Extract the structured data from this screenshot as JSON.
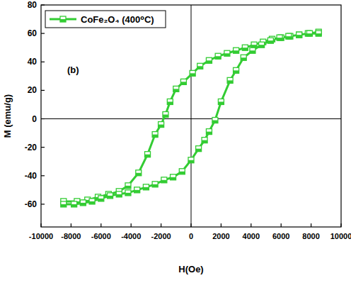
{
  "chart_data": {
    "type": "line",
    "x_label": "H(Oe)",
    "y_label": "M (emu/g)",
    "annotation": "(b)",
    "xlim": [
      -10000,
      10000
    ],
    "ylim": [
      -76,
      80
    ],
    "xticks": [
      -10000,
      -8000,
      -6000,
      -4000,
      -2000,
      0,
      2000,
      4000,
      6000,
      8000,
      10000
    ],
    "yticks": [
      -60,
      -40,
      -20,
      0,
      20,
      40,
      60,
      80
    ],
    "legend": "upper left",
    "series": [
      {
        "name": "CoFe₂O₄ (400⁰C)",
        "color": "#33cc33",
        "marker": "square",
        "x": [
          8500,
          7800,
          7200,
          6600,
          6000,
          5400,
          4800,
          4200,
          3600,
          3000,
          2400,
          1800,
          1200,
          600,
          100,
          -500,
          -1000,
          -1400,
          -1700,
          -2000,
          -2400,
          -2900,
          -3500,
          -4200,
          -4800,
          -5500,
          -6200,
          -6900,
          -7600,
          -8500,
          -8500,
          -7800,
          -7200,
          -6600,
          -6000,
          -5400,
          -4800,
          -4200,
          -3600,
          -3000,
          -2400,
          -1800,
          -1200,
          -600,
          0,
          500,
          900,
          1200,
          1600,
          2000,
          2600,
          3000,
          3500,
          4100,
          4700,
          5300,
          5900,
          6500,
          7200,
          7900,
          8500
        ],
        "values": [
          61,
          60,
          59,
          58,
          57,
          56,
          54,
          52,
          50,
          48,
          46,
          44,
          41,
          37,
          32,
          26,
          21,
          12,
          3,
          -4,
          -11,
          -25,
          -38,
          -47,
          -51,
          -53,
          -55,
          -57,
          -58,
          -58,
          -60,
          -60,
          -59,
          -58,
          -56,
          -54,
          -53,
          -52,
          -50,
          -48,
          -46,
          -43,
          -41,
          -37,
          -29,
          -21,
          -15,
          -9,
          -1,
          12,
          27,
          34,
          43,
          48,
          52,
          55,
          57,
          58,
          59,
          60,
          60
        ]
      }
    ]
  }
}
